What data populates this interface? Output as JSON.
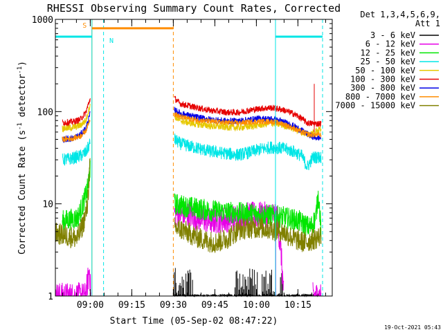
{
  "chart_data": {
    "type": "line",
    "title": "RHESSI Observing Summary Count Rates, Corrected",
    "xlabel": "Start Time (05-Sep-02 08:47:22)",
    "ylabel": "Corrected Count Rate (s",
    "ylabel_sup1": "-1",
    "ylabel_mid": " detector",
    "ylabel_sup2": "-1",
    "ylabel_end": ")",
    "yscale": "log",
    "ylim": [
      1,
      1000
    ],
    "xlim_minutes_after_start": [
      0,
      100
    ],
    "x_ticks": [
      {
        "label": "09:00",
        "minutes": 12.6
      },
      {
        "label": "09:15",
        "minutes": 27.6
      },
      {
        "label": "09:30",
        "minutes": 42.6
      },
      {
        "label": "09:45",
        "minutes": 57.6
      },
      {
        "label": "10:00",
        "minutes": 72.6
      },
      {
        "label": "10:15",
        "minutes": 87.6
      }
    ],
    "y_ticks": [
      {
        "label": "1",
        "value": 1
      },
      {
        "label": "10",
        "value": 10
      },
      {
        "label": "100",
        "value": 100
      },
      {
        "label": "1000",
        "value": 1000
      }
    ],
    "legend_header": [
      "Det 1,3,4,5,6,9,",
      "Att 1"
    ],
    "legend_position": "right",
    "legend_items": [
      {
        "label": "3 - 6 keV",
        "color": "#000000"
      },
      {
        "label": "6 - 12 keV",
        "color": "#e600e6"
      },
      {
        "label": "12 - 25 keV",
        "color": "#00e600"
      },
      {
        "label": "25 - 50 keV",
        "color": "#00e6e6"
      },
      {
        "label": "50 - 100 keV",
        "color": "#e6c800"
      },
      {
        "label": "100 - 300 keV",
        "color": "#e60000"
      },
      {
        "label": "300 - 800 keV",
        "color": "#0000e6"
      },
      {
        "label": "800 - 7000 keV",
        "color": "#ff8c00"
      },
      {
        "label": "7000 - 15000 keV",
        "color": "#808000"
      }
    ],
    "flags": [
      {
        "label": "S",
        "color": "#ff8c00",
        "start_min": 13.2,
        "end_min": 42.6,
        "level": 800
      },
      {
        "label": "N",
        "color": "#00e6e6",
        "start_min": 0,
        "end_min": 13.2,
        "level": 650
      },
      {
        "label": "",
        "color": "#00e6e6",
        "start_min": 79.5,
        "end_min": 96.5,
        "level": 650
      }
    ],
    "vertical_lines": [
      {
        "color": "#00e6e6",
        "minutes": 0,
        "style": "solid"
      },
      {
        "color": "#ff8c00",
        "minutes": 13.2,
        "style": "solid"
      },
      {
        "color": "#00e6e6",
        "minutes": 13.2,
        "style": "solid"
      },
      {
        "color": "#00e6e6",
        "minutes": 17.4,
        "style": "dashed"
      },
      {
        "color": "#ff8c00",
        "minutes": 42.6,
        "style": "dashed"
      },
      {
        "color": "#00e6e6",
        "minutes": 79.5,
        "style": "solid"
      },
      {
        "color": "#00e6e6",
        "minutes": 96.5,
        "style": "dashed"
      }
    ],
    "series": [
      {
        "name": "3 - 6 keV",
        "color": "#000000",
        "noise": 0.02,
        "spike": "black",
        "segments": [
          [
            [
              43,
              1.0
            ],
            [
              49,
              1.0
            ],
            [
              52,
              1.0
            ],
            [
              66,
              1.0
            ],
            [
              72,
              1.0
            ],
            [
              80,
              1.0
            ],
            [
              96,
              1.0
            ]
          ]
        ]
      },
      {
        "name": "6 - 12 keV",
        "color": "#e600e6",
        "noise": 0.15,
        "spike": "magenta",
        "segments": [
          [
            [
              0,
              1.0
            ],
            [
              11,
              1.0
            ],
            [
              12.3,
              2.0
            ],
            [
              12.8,
              1.0
            ]
          ],
          [
            [
              43,
              8
            ],
            [
              49,
              7.5
            ],
            [
              52,
              7
            ],
            [
              56,
              6.5
            ],
            [
              64,
              7
            ],
            [
              70,
              7.5
            ],
            [
              78,
              7.5
            ],
            [
              80,
              7.5
            ],
            [
              81.5,
              3
            ],
            [
              82.5,
              1.0
            ]
          ],
          [
            [
              93,
              1.0
            ],
            [
              96,
              1.0
            ]
          ]
        ]
      },
      {
        "name": "12 - 25 keV",
        "color": "#00e600",
        "noise": 0.12,
        "segments": [
          [
            [
              2.5,
              6.5
            ],
            [
              8,
              7
            ],
            [
              10,
              10
            ],
            [
              11.5,
              14
            ],
            [
              12.6,
              25
            ]
          ],
          [
            [
              43,
              10
            ],
            [
              46,
              9.5
            ],
            [
              55,
              8.5
            ],
            [
              65,
              8
            ],
            [
              72,
              7.8
            ],
            [
              78,
              7.5
            ],
            [
              82,
              7.2
            ],
            [
              88,
              6.5
            ],
            [
              92,
              5.5
            ],
            [
              94,
              7
            ],
            [
              95,
              13
            ],
            [
              96,
              5
            ]
          ]
        ]
      },
      {
        "name": "25 - 50 keV",
        "color": "#00e6e6",
        "noise": 0.07,
        "segments": [
          [
            [
              2.5,
              30
            ],
            [
              6,
              31
            ],
            [
              9,
              33
            ],
            [
              11,
              36
            ],
            [
              12.6,
              46
            ]
          ],
          [
            [
              43,
              50
            ],
            [
              45,
              45
            ],
            [
              50,
              41
            ],
            [
              56,
              37
            ],
            [
              62,
              35
            ],
            [
              66,
              34
            ],
            [
              70,
              36
            ],
            [
              74,
              39
            ],
            [
              78,
              41
            ],
            [
              82,
              40
            ],
            [
              86,
              37
            ],
            [
              89,
              33
            ],
            [
              91,
              25
            ],
            [
              93,
              32
            ],
            [
              96,
              32
            ]
          ]
        ]
      },
      {
        "name": "50 - 100 keV",
        "color": "#e6c800",
        "noise": 0.04,
        "segments": [
          [
            [
              2.5,
              66
            ],
            [
              6,
              67
            ],
            [
              9,
              71
            ],
            [
              11,
              80
            ],
            [
              12.6,
              120
            ]
          ],
          [
            [
              43,
              90
            ],
            [
              45,
              80
            ],
            [
              50,
              74
            ],
            [
              56,
              70
            ],
            [
              62,
              68
            ],
            [
              66,
              67
            ],
            [
              70,
              69
            ],
            [
              74,
              72
            ],
            [
              78,
              75
            ],
            [
              82,
              72
            ],
            [
              86,
              66
            ],
            [
              89,
              60
            ],
            [
              92,
              56
            ],
            [
              94,
              62
            ],
            [
              96,
              65
            ]
          ]
        ]
      },
      {
        "name": "100 - 300 keV",
        "color": "#e60000",
        "noise": 0.035,
        "spike": "red",
        "segments": [
          [
            [
              2.5,
              76
            ],
            [
              6,
              77
            ],
            [
              9,
              82
            ],
            [
              11,
              98
            ],
            [
              12.6,
              140
            ]
          ],
          [
            [
              43,
              140
            ],
            [
              45,
              122
            ],
            [
              50,
              112
            ],
            [
              56,
              103
            ],
            [
              62,
              98
            ],
            [
              66,
              98
            ],
            [
              70,
              103
            ],
            [
              74,
              108
            ],
            [
              78,
              110
            ],
            [
              82,
              105
            ],
            [
              86,
              95
            ],
            [
              89,
              84
            ],
            [
              91,
              75
            ],
            [
              94,
              74
            ],
            [
              96,
              74
            ]
          ]
        ]
      },
      {
        "name": "300 - 800 keV",
        "color": "#0000e6",
        "noise": 0.035,
        "segments": [
          [
            [
              2.5,
              50
            ],
            [
              6,
              51
            ],
            [
              9,
              56
            ],
            [
              11,
              66
            ],
            [
              12.6,
              95
            ]
          ],
          [
            [
              43,
              105
            ],
            [
              45,
              96
            ],
            [
              50,
              88
            ],
            [
              56,
              82
            ],
            [
              62,
              79
            ],
            [
              66,
              79
            ],
            [
              70,
              82
            ],
            [
              74,
              84
            ],
            [
              78,
              83
            ],
            [
              82,
              78
            ],
            [
              86,
              70
            ],
            [
              89,
              62
            ],
            [
              92,
              55
            ],
            [
              94,
              52
            ],
            [
              96,
              52
            ]
          ]
        ]
      },
      {
        "name": "800 - 7000 keV",
        "color": "#ff8c00",
        "noise": 0.03,
        "segments": [
          [
            [
              2.5,
              50
            ],
            [
              6,
              51
            ],
            [
              9,
              54
            ],
            [
              11,
              62
            ],
            [
              12.6,
              85
            ]
          ],
          [
            [
              43,
              95
            ],
            [
              45,
              88
            ],
            [
              50,
              82
            ],
            [
              56,
              78
            ],
            [
              62,
              76
            ],
            [
              66,
              75
            ],
            [
              70,
              77
            ],
            [
              74,
              78
            ],
            [
              78,
              78
            ],
            [
              82,
              74
            ],
            [
              86,
              66
            ],
            [
              89,
              60
            ],
            [
              92,
              56
            ],
            [
              94,
              56
            ],
            [
              96,
              56
            ]
          ]
        ]
      },
      {
        "name": "7000 - 15000 keV",
        "color": "#808000",
        "noise": 0.12,
        "segments": [
          [
            [
              0,
              4.8
            ],
            [
              4,
              4.5
            ],
            [
              8,
              4.2
            ],
            [
              10,
              6
            ],
            [
              11.5,
              9
            ],
            [
              12.6,
              30
            ]
          ],
          [
            [
              43,
              5.5
            ],
            [
              46,
              5.2
            ],
            [
              50,
              4.5
            ],
            [
              54,
              4
            ],
            [
              58,
              3.8
            ],
            [
              62,
              4.2
            ],
            [
              66,
              5.2
            ],
            [
              70,
              5.5
            ],
            [
              74,
              5.5
            ],
            [
              78,
              5.3
            ],
            [
              82,
              5
            ],
            [
              86,
              4.2
            ],
            [
              90,
              3.8
            ],
            [
              94,
              4.2
            ],
            [
              96,
              4.5
            ]
          ]
        ]
      }
    ],
    "timestamp": "19-Oct-2021 05:43"
  }
}
